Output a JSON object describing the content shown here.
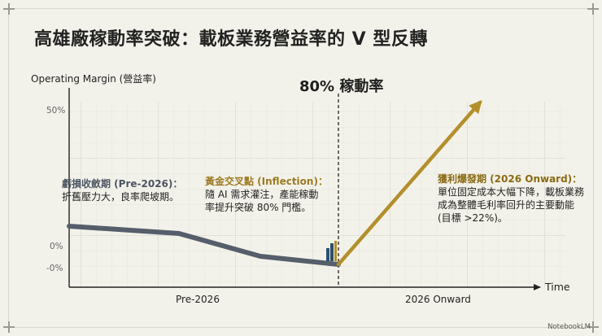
{
  "title": "高雄廠稼動率突破：載板業務營益率的 V 型反轉",
  "y_axis_label": "Operating Margin (營益率)",
  "x_axis_label": "Time",
  "center_label": "80% 稼動率",
  "y_ticks": [
    "50%",
    "0%",
    "-0%"
  ],
  "x_phases": [
    "Pre-2026",
    "2026 Onward"
  ],
  "annotations": {
    "pre": {
      "title": "虧損收斂期 (Pre-2026)：",
      "body": "折舊壓力大，良率爬坡期。"
    },
    "inflection": {
      "title": "黃金交叉點 (Inflection)：",
      "body": "隨 AI 需求灌注，產能稼動率提升突破 80% 門檻。"
    },
    "post": {
      "title": "獲利爆發期 (2026 Onward)：",
      "body": "單位固定成本大幅下降，載板業務成為整體毛利率回升的主要動能 (目標 >22%)。"
    }
  },
  "colors": {
    "pre_line": "#565e6c",
    "post_arrow": "#b38f2c",
    "inflection_marker": "#2c4f6e"
  },
  "brand": "NotebookLM"
}
